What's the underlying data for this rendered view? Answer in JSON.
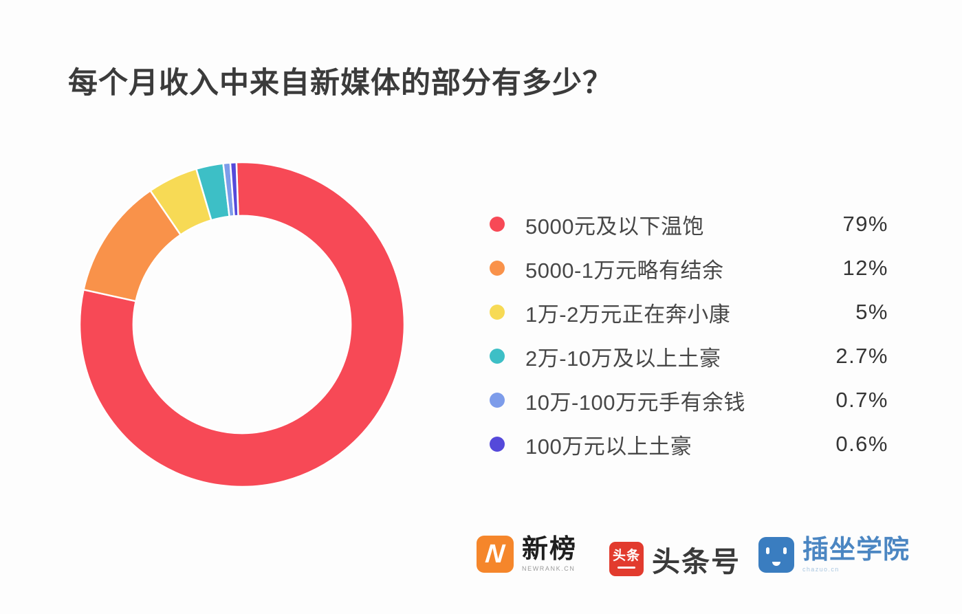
{
  "title": "每个月收入中来自新媒体的部分有多少？",
  "chart_data": {
    "type": "pie",
    "subtype": "donut",
    "title": "每个月收入中来自新媒体的部分有多少？",
    "legend_position": "right",
    "start_angle_deg": -2,
    "inner_radius_ratio": 0.67,
    "series": [
      {
        "label": "5000元及以下温饱",
        "value": 79,
        "display": "79%",
        "color": "#f74956"
      },
      {
        "label": "5000-1万元略有结余",
        "value": 12,
        "display": "12%",
        "color": "#f9924a"
      },
      {
        "label": "1万-2万元正在奔小康",
        "value": 5,
        "display": "5%",
        "color": "#f7da55"
      },
      {
        "label": "2万-10万及以上土豪",
        "value": 2.7,
        "display": "2.7%",
        "color": "#3dbfc6"
      },
      {
        "label": "10万-100万元手有余钱",
        "value": 0.7,
        "display": "0.7%",
        "color": "#7d9cea"
      },
      {
        "label": "100万元以上土豪",
        "value": 0.6,
        "display": "0.6%",
        "color": "#5549da"
      }
    ]
  },
  "footer": {
    "logos": [
      {
        "icon": "newrank-logo-icon",
        "icon_text": "N",
        "title": "新榜",
        "subtitle": "NEWRANK.CN",
        "brand_color": "#f5862b"
      },
      {
        "icon": "toutiao-logo-icon",
        "icon_text": "头条",
        "title": "头条号",
        "brand_color": "#e23b2e"
      },
      {
        "icon": "chazuo-logo-icon",
        "title": "插坐学院",
        "subtitle": "chazuo.cn",
        "brand_color": "#3a7dc0"
      }
    ]
  }
}
